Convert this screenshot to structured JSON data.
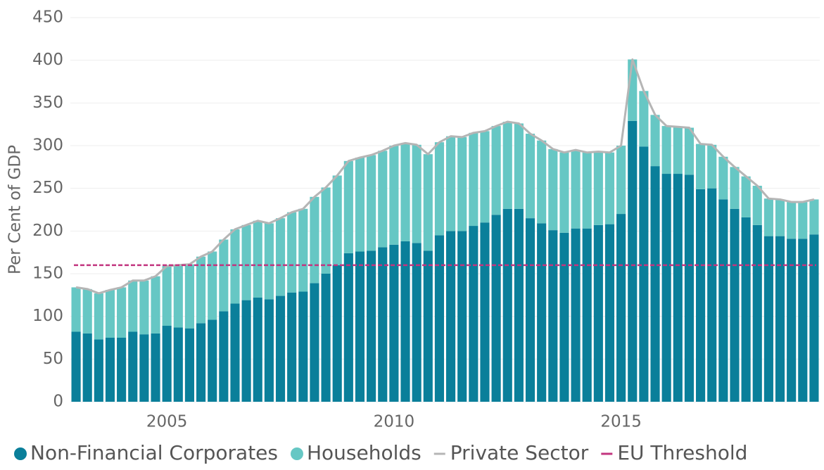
{
  "chart_data": {
    "type": "stacked-bar-line",
    "y_axis_label": "Per Cent of GDP",
    "categories": [
      null,
      null,
      null,
      null,
      null,
      null,
      null,
      null,
      "2005",
      null,
      null,
      null,
      null,
      null,
      null,
      null,
      null,
      null,
      null,
      null,
      null,
      null,
      null,
      null,
      null,
      null,
      null,
      null,
      "2010",
      null,
      null,
      null,
      null,
      null,
      null,
      null,
      null,
      null,
      null,
      null,
      null,
      null,
      null,
      null,
      null,
      null,
      null,
      null,
      "2015",
      null,
      null,
      null,
      null,
      null,
      null,
      null,
      null,
      null,
      null,
      null,
      null,
      null,
      null,
      null,
      null,
      null
    ],
    "series": [
      {
        "name": "Non-Financial Corporates",
        "color": "#0a7f9a",
        "kind": "bar",
        "values": [
          82,
          80,
          73,
          75,
          75,
          82,
          79,
          80,
          89,
          87,
          86,
          92,
          96,
          106,
          115,
          119,
          122,
          120,
          124,
          128,
          129,
          139,
          150,
          160,
          174,
          176,
          177,
          181,
          184,
          188,
          186,
          177,
          195,
          200,
          200,
          206,
          210,
          219,
          226,
          226,
          215,
          209,
          201,
          198,
          203,
          203,
          207,
          208,
          220,
          329,
          299,
          276,
          267,
          267,
          266,
          249,
          250,
          237,
          226,
          216,
          207,
          194,
          194,
          191,
          191,
          196
        ]
      },
      {
        "name": "Households",
        "color": "#66c7c4",
        "kind": "bar",
        "values": [
          52,
          52,
          54,
          56,
          59,
          60,
          63,
          67,
          70,
          73,
          75,
          78,
          80,
          84,
          87,
          88,
          90,
          89,
          91,
          94,
          97,
          101,
          101,
          105,
          108,
          110,
          112,
          113,
          116,
          115,
          115,
          113,
          109,
          111,
          110,
          109,
          107,
          104,
          102,
          100,
          99,
          97,
          95,
          94,
          92,
          89,
          86,
          84,
          80,
          72,
          65,
          60,
          56,
          55,
          55,
          53,
          51,
          50,
          49,
          48,
          46,
          44,
          43,
          43,
          43,
          41
        ]
      },
      {
        "name": "Private Sector",
        "color": "#b5b5b5",
        "kind": "line",
        "values": [
          134,
          132,
          127,
          131,
          134,
          142,
          142,
          147,
          159,
          160,
          161,
          170,
          176,
          190,
          202,
          207,
          212,
          209,
          215,
          222,
          226,
          240,
          251,
          265,
          282,
          286,
          289,
          294,
          300,
          303,
          301,
          290,
          304,
          311,
          310,
          315,
          317,
          323,
          328,
          326,
          314,
          306,
          296,
          292,
          295,
          292,
          293,
          292,
          300,
          401,
          364,
          336,
          323,
          322,
          321,
          302,
          301,
          287,
          275,
          264,
          253,
          238,
          237,
          234,
          234,
          237
        ]
      }
    ],
    "reference_lines": [
      {
        "name": "EU Threshold",
        "value": 160,
        "color": "#c2357f",
        "dashed": true
      }
    ],
    "ylim": [
      0,
      450
    ],
    "yticks": [
      0,
      50,
      100,
      150,
      200,
      250,
      300,
      350,
      400,
      450
    ],
    "grid": true
  }
}
